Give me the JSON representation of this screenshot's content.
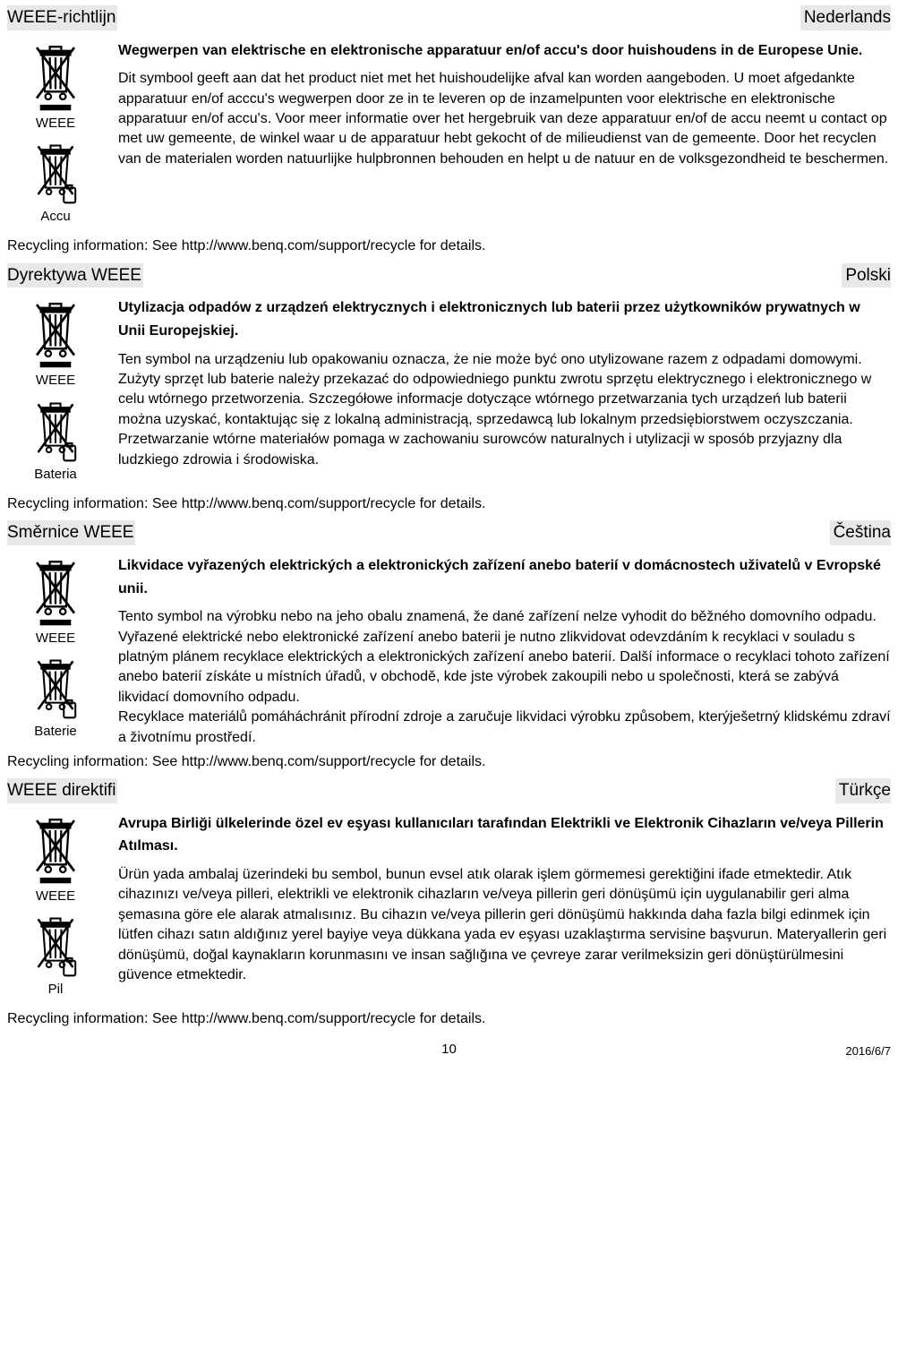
{
  "sections": [
    {
      "title": "WEEE-richtlijn",
      "language": "Nederlands",
      "weee_label": "WEEE",
      "battery_label": "Accu",
      "heading": "Wegwerpen van elektrische en elektronische apparatuur en/of accu's door huishoudens in de Europese Unie.",
      "body": "Dit symbool geeft aan dat het product niet met het huishoudelijke afval kan worden aangeboden. U moet afgedankte apparatuur en/of acccu's wegwerpen door ze in te leveren op de inzamelpunten voor elektrische en elektronische apparatuur en/of accu's. Voor meer informatie over het hergebruik van deze apparatuur en/of de accu neemt u contact op met uw gemeente, de winkel waar u de apparatuur hebt gekocht of de milieudienst van de gemeente. Door het recyclen van de materialen worden natuurlijke hulpbronnen behouden en helpt u de natuur en de volksgezondheid te beschermen.",
      "recycle": "Recycling information: See http://www.benq.com/support/recycle for details."
    },
    {
      "title": "Dyrektywa WEEE",
      "language": "Polski",
      "weee_label": "WEEE",
      "battery_label": "Bateria",
      "heading": "Utylizacja odpadów z urządzeń elektrycznych i elektronicznych lub baterii przez użytkowników prywatnych w Unii Europejskiej.",
      "body": "Ten symbol na urządzeniu lub opakowaniu oznacza, że nie może być ono utylizowane razem z odpadami domowymi. Zużyty sprzęt lub baterie należy przekazać do odpowiedniego punktu zwrotu sprzętu elektrycznego i elektronicznego w celu wtórnego przetworzenia. Szczegółowe informacje dotyczące wtórnego przetwarzania tych urządzeń lub baterii można uzyskać, kontaktując się z lokalną administracją, sprzedawcą lub lokalnym przedsiębiorstwem oczyszczania. Przetwarzanie wtórne materiałów pomaga w zachowaniu surowców naturalnych i utylizacji w sposób przyjazny dla ludzkiego zdrowia i środowiska.",
      "recycle": "Recycling information: See http://www.benq.com/support/recycle for details."
    },
    {
      "title": "Směrnice WEEE",
      "language": "Čeština",
      "weee_label": "WEEE",
      "battery_label": "Baterie",
      "heading": "Likvidace vyřazených elektrických a elektronických zařízení anebo baterií v domácnostech uživatelů v Evropské unii.",
      "body": "Tento symbol na výrobku nebo na jeho obalu znamená, že dané zařízení nelze vyhodit do běžného domovního odpadu. Vyřazené elektrické nebo elektronické zařízení anebo baterii je nutno zlikvidovat odevzdáním k recyklaci v souladu s platným plánem recyklace elektrických a elektronických zařízení anebo baterií. Další informace o recyklaci tohoto zařízení anebo baterií získáte u místních úřadů, v obchodě, kde jste výrobek zakoupili nebo u společnosti, která se zabývá likvidací domovního odpadu.\nRecyklace materiálů pomáháchránit přírodní zdroje a zaručuje likvidaci výrobku způsobem, kterýješetrný klidskému zdraví a životnímu prostředí.",
      "recycle": "Recycling information: See http://www.benq.com/support/recycle for details."
    },
    {
      "title": "WEEE direktifi",
      "language": "Türkçe",
      "weee_label": "WEEE",
      "battery_label": "Pil",
      "heading": "Avrupa Birliği ülkelerinde özel ev eşyası kullanıcıları tarafından Elektrikli ve Elektronik Cihazların ve/veya Pillerin Atılması.",
      "body": "Ürün yada ambalaj üzerindeki bu sembol, bunun evsel atık olarak işlem görmemesi gerektiğini ifade etmektedir. Atık cihazınızı ve/veya pilleri, elektrikli ve elektronik cihazların ve/veya pillerin geri dönüşümü için uygulanabilir geri alma şemasına göre ele alarak atmalısınız. Bu cihazın ve/veya pillerin geri dönüşümü hakkında daha fazla bilgi edinmek için lütfen cihazı satın aldığınız yerel bayiye veya dükkana yada ev eşyası uzaklaştırma servisine başvurun. Materyallerin geri dönüşümü, doğal kaynakların korunmasını ve insan sağlığına ve çevreye zarar verilmeksizin geri dönüştürülmesini güvence etmektedir.",
      "recycle": "Recycling information: See http://www.benq.com/support/recycle for details."
    }
  ],
  "footer": {
    "page": "10",
    "date": "2016/6/7"
  }
}
